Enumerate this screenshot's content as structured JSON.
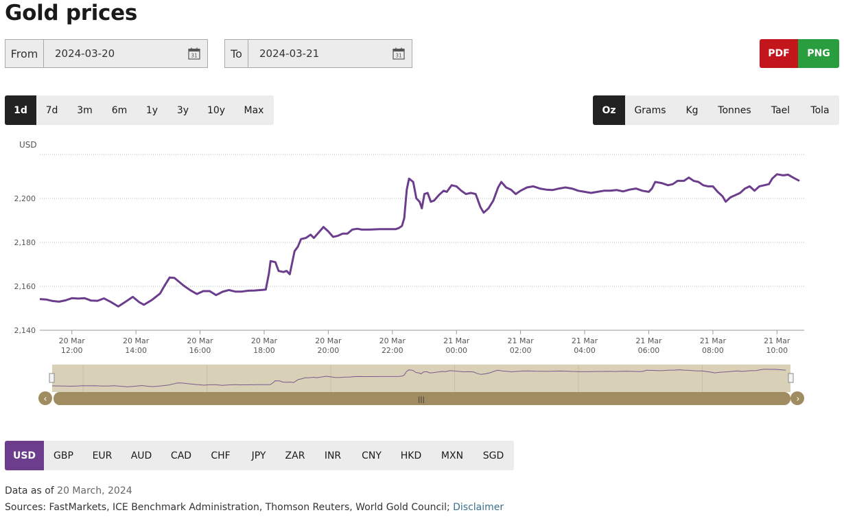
{
  "page": {
    "title": "Gold prices"
  },
  "date_range": {
    "from_label": "From",
    "from_value": "2024-03-20",
    "to_label": "To",
    "to_value": "2024-03-21"
  },
  "export": {
    "pdf_label": "PDF",
    "png_label": "PNG"
  },
  "periods": [
    "1d",
    "7d",
    "3m",
    "6m",
    "1y",
    "3y",
    "10y",
    "Max"
  ],
  "active_period": "1d",
  "units": [
    "Oz",
    "Grams",
    "Kg",
    "Tonnes",
    "Tael",
    "Tola"
  ],
  "active_unit": "Oz",
  "currencies": [
    "USD",
    "GBP",
    "EUR",
    "AUD",
    "CAD",
    "CHF",
    "JPY",
    "ZAR",
    "INR",
    "CNY",
    "HKD",
    "MXN",
    "SGD"
  ],
  "active_currency": "USD",
  "colors": {
    "line": "#6b3d8c",
    "navigator_fill": "#d9d0b8",
    "scrollbar": "#a08c61",
    "pdf": "#c3161c",
    "png": "#2a9d3f",
    "active_dark": "#222222",
    "active_currency": "#6b3d8c"
  },
  "chart_data": {
    "type": "line",
    "ylabel": "USD",
    "ylim": [
      2140,
      2220
    ],
    "yticks": [
      2140,
      2160,
      2180,
      2200
    ],
    "x_ticks": [
      {
        "t": 12,
        "day": "20 Mar",
        "time": "12:00"
      },
      {
        "t": 14,
        "day": "20 Mar",
        "time": "14:00"
      },
      {
        "t": 16,
        "day": "20 Mar",
        "time": "16:00"
      },
      {
        "t": 18,
        "day": "20 Mar",
        "time": "18:00"
      },
      {
        "t": 20,
        "day": "20 Mar",
        "time": "20:00"
      },
      {
        "t": 22,
        "day": "20 Mar",
        "time": "22:00"
      },
      {
        "t": 24,
        "day": "21 Mar",
        "time": "00:00"
      },
      {
        "t": 26,
        "day": "21 Mar",
        "time": "02:00"
      },
      {
        "t": 28,
        "day": "21 Mar",
        "time": "04:00"
      },
      {
        "t": 30,
        "day": "21 Mar",
        "time": "06:00"
      },
      {
        "t": 32,
        "day": "21 Mar",
        "time": "08:00"
      },
      {
        "t": 34,
        "day": "21 Mar",
        "time": "10:00"
      }
    ],
    "xlim": [
      11,
      34.85
    ],
    "series": [
      {
        "points": [
          [
            11.0,
            2154.2
          ],
          [
            11.2,
            2154.0
          ],
          [
            11.4,
            2153.3
          ],
          [
            11.6,
            2153.0
          ],
          [
            11.8,
            2153.6
          ],
          [
            12.0,
            2154.6
          ],
          [
            12.2,
            2154.4
          ],
          [
            12.4,
            2154.6
          ],
          [
            12.6,
            2153.5
          ],
          [
            12.8,
            2153.4
          ],
          [
            13.0,
            2154.5
          ],
          [
            13.2,
            2153.0
          ],
          [
            13.45,
            2150.8
          ],
          [
            13.7,
            2153.2
          ],
          [
            13.9,
            2155.2
          ],
          [
            14.1,
            2152.8
          ],
          [
            14.25,
            2151.6
          ],
          [
            14.5,
            2153.8
          ],
          [
            14.75,
            2156.7
          ],
          [
            14.9,
            2160.5
          ],
          [
            15.05,
            2164.0
          ],
          [
            15.2,
            2163.8
          ],
          [
            15.35,
            2162.0
          ],
          [
            15.5,
            2160.2
          ],
          [
            15.7,
            2158.2
          ],
          [
            15.9,
            2156.5
          ],
          [
            16.1,
            2157.8
          ],
          [
            16.3,
            2157.8
          ],
          [
            16.5,
            2156.0
          ],
          [
            16.7,
            2157.5
          ],
          [
            16.9,
            2158.3
          ],
          [
            17.1,
            2157.6
          ],
          [
            17.3,
            2157.6
          ],
          [
            17.5,
            2158.0
          ],
          [
            17.7,
            2158.1
          ],
          [
            17.9,
            2158.3
          ],
          [
            18.05,
            2158.5
          ],
          [
            18.15,
            2166.0
          ],
          [
            18.2,
            2171.5
          ],
          [
            18.35,
            2171.0
          ],
          [
            18.45,
            2167.0
          ],
          [
            18.6,
            2166.5
          ],
          [
            18.7,
            2167.0
          ],
          [
            18.8,
            2165.5
          ],
          [
            18.95,
            2176.0
          ],
          [
            19.05,
            2178.0
          ],
          [
            19.15,
            2181.5
          ],
          [
            19.3,
            2182.0
          ],
          [
            19.45,
            2183.5
          ],
          [
            19.55,
            2182.0
          ],
          [
            19.7,
            2184.5
          ],
          [
            19.85,
            2187.0
          ],
          [
            20.0,
            2185.0
          ],
          [
            20.15,
            2182.5
          ],
          [
            20.3,
            2183.0
          ],
          [
            20.45,
            2184.0
          ],
          [
            20.6,
            2184.0
          ],
          [
            20.75,
            2185.8
          ],
          [
            20.9,
            2186.2
          ],
          [
            21.05,
            2185.8
          ],
          [
            21.3,
            2185.8
          ],
          [
            21.6,
            2186.0
          ],
          [
            21.9,
            2186.0
          ],
          [
            22.1,
            2186.0
          ],
          [
            22.2,
            2186.5
          ],
          [
            22.3,
            2187.5
          ],
          [
            22.37,
            2191.0
          ],
          [
            22.45,
            2204.0
          ],
          [
            22.52,
            2209.0
          ],
          [
            22.65,
            2207.5
          ],
          [
            22.75,
            2200.0
          ],
          [
            22.85,
            2198.5
          ],
          [
            22.92,
            2195.5
          ],
          [
            23.0,
            2202.0
          ],
          [
            23.1,
            2202.5
          ],
          [
            23.2,
            2198.5
          ],
          [
            23.3,
            2199.0
          ],
          [
            23.45,
            2201.5
          ],
          [
            23.6,
            2203.5
          ],
          [
            23.7,
            2203.0
          ],
          [
            23.85,
            2206.0
          ],
          [
            24.0,
            2205.5
          ],
          [
            24.15,
            2203.5
          ],
          [
            24.3,
            2202.0
          ],
          [
            24.45,
            2202.5
          ],
          [
            24.6,
            2202.0
          ],
          [
            24.75,
            2196.0
          ],
          [
            24.85,
            2193.5
          ],
          [
            25.0,
            2195.5
          ],
          [
            25.15,
            2199.0
          ],
          [
            25.3,
            2205.0
          ],
          [
            25.4,
            2207.5
          ],
          [
            25.55,
            2205.0
          ],
          [
            25.7,
            2204.0
          ],
          [
            25.85,
            2202.0
          ],
          [
            26.0,
            2203.5
          ],
          [
            26.2,
            2205.0
          ],
          [
            26.4,
            2205.5
          ],
          [
            26.6,
            2204.5
          ],
          [
            26.8,
            2204.0
          ],
          [
            27.0,
            2203.8
          ],
          [
            27.2,
            2204.5
          ],
          [
            27.4,
            2205.0
          ],
          [
            27.6,
            2204.5
          ],
          [
            27.8,
            2203.5
          ],
          [
            28.0,
            2203.0
          ],
          [
            28.2,
            2202.5
          ],
          [
            28.4,
            2203.0
          ],
          [
            28.6,
            2203.5
          ],
          [
            28.8,
            2203.5
          ],
          [
            29.0,
            2203.8
          ],
          [
            29.2,
            2203.2
          ],
          [
            29.4,
            2204.0
          ],
          [
            29.6,
            2204.5
          ],
          [
            29.8,
            2203.5
          ],
          [
            30.0,
            2203.0
          ],
          [
            30.1,
            2204.5
          ],
          [
            30.2,
            2207.5
          ],
          [
            30.4,
            2207.0
          ],
          [
            30.6,
            2206.0
          ],
          [
            30.75,
            2206.5
          ],
          [
            30.9,
            2208.0
          ],
          [
            31.1,
            2208.0
          ],
          [
            31.25,
            2209.5
          ],
          [
            31.4,
            2208.0
          ],
          [
            31.55,
            2207.5
          ],
          [
            31.7,
            2206.0
          ],
          [
            31.85,
            2205.5
          ],
          [
            32.0,
            2205.5
          ],
          [
            32.15,
            2203.0
          ],
          [
            32.3,
            2201.0
          ],
          [
            32.4,
            2198.5
          ],
          [
            32.55,
            2200.5
          ],
          [
            32.7,
            2201.5
          ],
          [
            32.85,
            2202.5
          ],
          [
            33.0,
            2204.5
          ],
          [
            33.15,
            2205.5
          ],
          [
            33.3,
            2203.5
          ],
          [
            33.45,
            2205.5
          ],
          [
            33.6,
            2206.0
          ],
          [
            33.75,
            2206.5
          ],
          [
            33.85,
            2209.0
          ],
          [
            34.0,
            2211.0
          ],
          [
            34.2,
            2210.5
          ],
          [
            34.35,
            2210.8
          ],
          [
            34.5,
            2209.5
          ],
          [
            34.7,
            2208.0
          ]
        ]
      }
    ]
  },
  "navigator": {
    "handle_label": "|||",
    "left_arrow": "‹",
    "right_arrow": "›"
  },
  "footer": {
    "data_as_of_label": "Data as of",
    "data_as_of_value": "20 March, 2024",
    "sources_text": "Sources: FastMarkets, ICE Benchmark Administration, Thomson Reuters, World Gold Council;",
    "disclaimer_label": "Disclaimer"
  }
}
